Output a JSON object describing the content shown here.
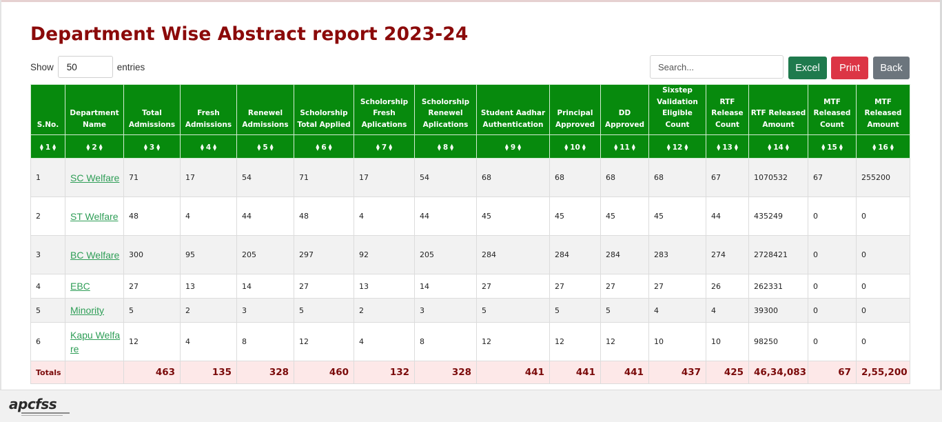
{
  "page": {
    "title": "Department Wise Abstract report 2023-24"
  },
  "controls": {
    "show_label": "Show",
    "entries_value": "50",
    "entries_label": "entries",
    "search_placeholder": "Search...",
    "excel_label": "Excel",
    "print_label": "Print",
    "back_label": "Back"
  },
  "table": {
    "headers": [
      "S.No.",
      "Department Name",
      "Total Admissions",
      "Fresh Admissions",
      "Renewel Admissions",
      "Scholorship Total Applied",
      "Scholorship Fresh Aplications",
      "Scholorship Renewel Aplications",
      "Student Aadhar Authentication",
      "Principal Approved",
      "DD Approved",
      "Sixstep Validation Eligible Count",
      "RTF Release Count",
      "RTF Released Amount",
      "MTF Released Count",
      "MTF Released Amount"
    ],
    "sort_labels": [
      "1",
      "2",
      "3",
      "4",
      "5",
      "6",
      "7",
      "8",
      "9",
      "10",
      "11",
      "12",
      "13",
      "14",
      "15",
      "16"
    ],
    "rows": [
      [
        "1",
        "SC Welfare",
        "71",
        "17",
        "54",
        "71",
        "17",
        "54",
        "68",
        "68",
        "68",
        "68",
        "67",
        "1070532",
        "67",
        "255200"
      ],
      [
        "2",
        "ST Welfare",
        "48",
        "4",
        "44",
        "48",
        "4",
        "44",
        "45",
        "45",
        "45",
        "45",
        "44",
        "435249",
        "0",
        "0"
      ],
      [
        "3",
        "BC Welfare",
        "300",
        "95",
        "205",
        "297",
        "92",
        "205",
        "284",
        "284",
        "284",
        "283",
        "274",
        "2728421",
        "0",
        "0"
      ],
      [
        "4",
        "EBC",
        "27",
        "13",
        "14",
        "27",
        "13",
        "14",
        "27",
        "27",
        "27",
        "27",
        "26",
        "262331",
        "0",
        "0"
      ],
      [
        "5",
        "Minority",
        "5",
        "2",
        "3",
        "5",
        "2",
        "3",
        "5",
        "5",
        "5",
        "4",
        "4",
        "39300",
        "0",
        "0"
      ],
      [
        "6",
        "Kapu Welfare",
        "12",
        "4",
        "8",
        "12",
        "4",
        "8",
        "12",
        "12",
        "12",
        "10",
        "10",
        "98250",
        "0",
        "0"
      ]
    ],
    "totals": [
      "Totals",
      "",
      "463",
      "135",
      "328",
      "460",
      "132",
      "328",
      "441",
      "441",
      "441",
      "437",
      "425",
      "46,34,083",
      "67",
      "2,55,200"
    ]
  },
  "footer": {
    "logo_text": "apcfss"
  },
  "colors": {
    "title": "#8b0a0a",
    "header_bg": "#078a0d",
    "link": "#2f9e57",
    "totals_bg": "#fde8e8",
    "excel": "#1f7a4d",
    "print": "#dc3545",
    "back": "#6c757d"
  }
}
